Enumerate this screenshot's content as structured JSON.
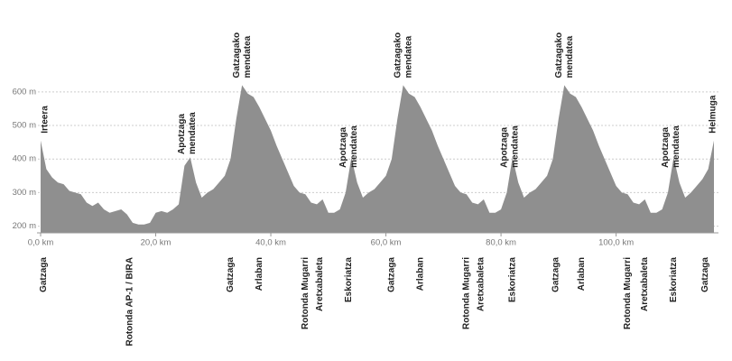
{
  "chart_data": {
    "type": "area",
    "color": "#8f8f8f",
    "x": [
      0,
      1,
      2,
      3,
      4,
      5,
      6,
      7,
      8,
      9,
      10,
      11,
      12,
      13,
      14,
      15,
      16,
      17,
      18,
      19,
      20,
      21,
      22,
      23,
      24,
      25,
      26,
      27,
      28,
      29,
      30,
      31,
      32,
      33,
      34,
      35,
      36,
      37,
      38,
      39,
      40,
      41,
      42,
      43,
      44,
      45,
      46,
      47,
      48,
      49,
      50,
      51,
      52,
      53,
      54,
      55,
      56,
      57,
      58,
      59,
      60,
      61,
      62,
      63,
      64,
      65,
      66,
      67,
      68,
      69,
      70,
      71,
      72,
      73,
      74,
      75,
      76,
      77,
      78,
      79,
      80,
      81,
      82,
      83,
      84,
      85,
      86,
      87,
      88,
      89,
      90,
      91,
      92,
      93,
      94,
      95,
      96,
      97,
      98,
      99,
      100,
      101,
      102,
      103,
      104,
      105,
      106,
      107,
      108,
      109,
      110,
      111,
      112,
      113,
      114,
      115,
      116,
      117
    ],
    "values": [
      455,
      370,
      345,
      330,
      325,
      305,
      300,
      295,
      270,
      260,
      270,
      250,
      240,
      245,
      250,
      235,
      210,
      205,
      205,
      210,
      240,
      245,
      240,
      250,
      265,
      380,
      405,
      330,
      285,
      300,
      310,
      330,
      350,
      400,
      520,
      620,
      595,
      585,
      555,
      520,
      485,
      440,
      400,
      360,
      320,
      300,
      295,
      270,
      265,
      280,
      240,
      240,
      250,
      300,
      405,
      330,
      285,
      300,
      310,
      330,
      350,
      400,
      520,
      620,
      595,
      585,
      555,
      520,
      485,
      440,
      400,
      360,
      320,
      300,
      295,
      270,
      265,
      280,
      240,
      240,
      250,
      300,
      405,
      330,
      285,
      300,
      310,
      330,
      350,
      400,
      520,
      620,
      595,
      585,
      555,
      520,
      485,
      440,
      400,
      360,
      320,
      300,
      295,
      270,
      265,
      280,
      240,
      240,
      250,
      300,
      405,
      330,
      285,
      300,
      320,
      340,
      370,
      455
    ],
    "xlim": [
      0,
      117
    ],
    "ylim": [
      180,
      640
    ],
    "xticks": [
      {
        "value": 0,
        "label": "0,0 km"
      },
      {
        "value": 20,
        "label": "20,0 km"
      },
      {
        "value": 40,
        "label": "40,0 km"
      },
      {
        "value": 60,
        "label": "60,0 km"
      },
      {
        "value": 80,
        "label": "80,0 km"
      },
      {
        "value": 100,
        "label": "100,0 km"
      }
    ],
    "yticks": [
      {
        "value": 200,
        "label": "200 m"
      },
      {
        "value": 300,
        "label": "300 m"
      },
      {
        "value": 400,
        "label": "400 m"
      },
      {
        "value": 500,
        "label": "500 m"
      },
      {
        "value": 600,
        "label": "600 m"
      }
    ],
    "grid": true,
    "top_labels": [
      {
        "km": 0,
        "lines": [
          "Irteera"
        ]
      },
      {
        "km": 25.5,
        "lines": [
          "Apotzaga",
          "mendatea"
        ]
      },
      {
        "km": 35,
        "lines": [
          "Gatzagako",
          "mendatea"
        ]
      },
      {
        "km": 53.5,
        "lines": [
          "Apotzaga",
          "mendatea"
        ]
      },
      {
        "km": 63,
        "lines": [
          "Gatzagako",
          "mendatea"
        ]
      },
      {
        "km": 81.5,
        "lines": [
          "Apotzaga",
          "mendatea"
        ]
      },
      {
        "km": 91,
        "lines": [
          "Gatzagako",
          "mendatea"
        ]
      },
      {
        "km": 109.5,
        "lines": [
          "Apotzaga",
          "mendatea"
        ]
      },
      {
        "km": 117,
        "lines": [
          "Helmuga"
        ]
      }
    ],
    "bottom_labels": [
      {
        "km": 0.5,
        "text": "Gatzaga"
      },
      {
        "km": 15.5,
        "text": "Rotonda AP-1 / BIRA"
      },
      {
        "km": 33,
        "text": "Gatzaga"
      },
      {
        "km": 38,
        "text": "Arlaban"
      },
      {
        "km": 46,
        "text": "Rotonda Mugarri"
      },
      {
        "km": 48.5,
        "text": "Aretxabaleta"
      },
      {
        "km": 53.5,
        "text": "Eskoriatza"
      },
      {
        "km": 61,
        "text": "Gatzaga"
      },
      {
        "km": 66,
        "text": "Arlaban"
      },
      {
        "km": 74,
        "text": "Rotonda Mugarri"
      },
      {
        "km": 76.5,
        "text": "Aretxabaleta"
      },
      {
        "km": 82,
        "text": "Eskoriatza"
      },
      {
        "km": 89.5,
        "text": "Gatzaga"
      },
      {
        "km": 94,
        "text": "Arlaban"
      },
      {
        "km": 102,
        "text": "Rotonda Mugarri"
      },
      {
        "km": 105,
        "text": "Aretxabaleta"
      },
      {
        "km": 110,
        "text": "Eskoriatza"
      },
      {
        "km": 115.5,
        "text": "Gatzaga"
      }
    ]
  }
}
